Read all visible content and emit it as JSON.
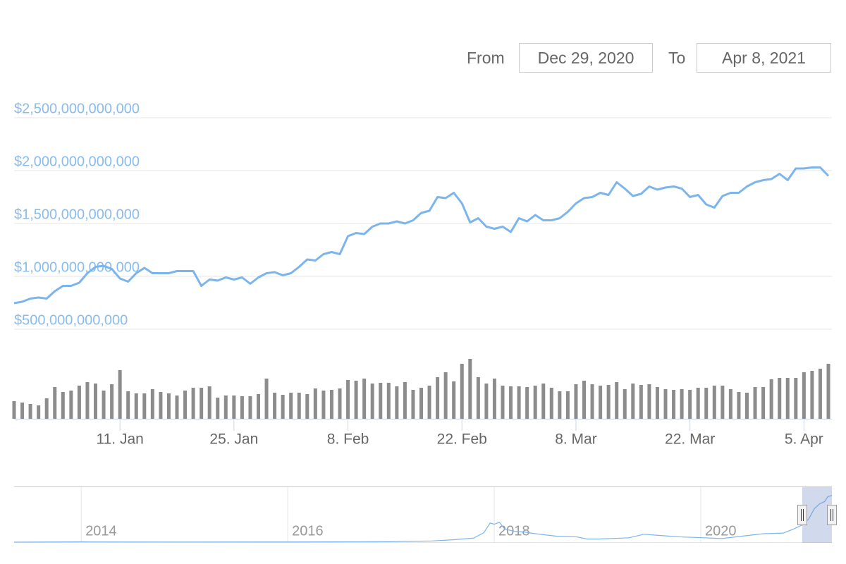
{
  "range_selector": {
    "from_label": "From",
    "from": "Dec 29, 2020",
    "to_label": "To",
    "to": "Apr 8, 2021"
  },
  "chart_data": [
    {
      "type": "line",
      "categories": [
        null,
        null,
        null,
        null,
        null,
        null,
        null,
        null,
        null,
        null,
        null,
        null,
        null,
        "11. Jan",
        null,
        null,
        null,
        null,
        null,
        null,
        null,
        null,
        null,
        null,
        null,
        null,
        null,
        "25. Jan",
        null,
        null,
        null,
        null,
        null,
        null,
        null,
        null,
        null,
        null,
        null,
        null,
        null,
        "8. Feb",
        null,
        null,
        null,
        null,
        null,
        null,
        null,
        null,
        null,
        null,
        null,
        null,
        null,
        "22. Feb",
        null,
        null,
        null,
        null,
        null,
        null,
        null,
        null,
        null,
        null,
        null,
        null,
        null,
        "8. Mar",
        null,
        null,
        null,
        null,
        null,
        null,
        null,
        null,
        null,
        null,
        null,
        null,
        null,
        "22. Mar",
        null,
        null,
        null,
        null,
        null,
        null,
        null,
        null,
        null,
        null,
        null,
        null,
        null,
        "5. Apr",
        null,
        null,
        null
      ],
      "series": [
        {
          "type": "line",
          "color": "#7cb5ec",
          "values": [
            747000000000.0,
            760000000000.0,
            790000000000.0,
            800000000000.0,
            790000000000.0,
            860000000000.0,
            910000000000.0,
            910000000000.0,
            940000000000.0,
            1030000000000.0,
            1090000000000.0,
            1100000000000.0,
            1070000000000.0,
            980000000000.0,
            950000000000.0,
            1030000000000.0,
            1080000000000.0,
            1030000000000.0,
            1030000000000.0,
            1030000000000.0,
            1050000000000.0,
            1050000000000.0,
            1050000000000.0,
            910000000000.0,
            970000000000.0,
            960000000000.0,
            990000000000.0,
            970000000000.0,
            990000000000.0,
            930000000000.0,
            990000000000.0,
            1030000000000.0,
            1040000000000.0,
            1010000000000.0,
            1030000000000.0,
            1090000000000.0,
            1160000000000.0,
            1150000000000.0,
            1210000000000.0,
            1230000000000.0,
            1210000000000.0,
            1380000000000.0,
            1410000000000.0,
            1400000000000.0,
            1470000000000.0,
            1500000000000.0,
            1500000000000.0,
            1520000000000.0,
            1500000000000.0,
            1530000000000.0,
            1600000000000.0,
            1620000000000.0,
            1750000000000.0,
            1740000000000.0,
            1790000000000.0,
            1690000000000.0,
            1510000000000.0,
            1550000000000.0,
            1470000000000.0,
            1450000000000.0,
            1470000000000.0,
            1420000000000.0,
            1550000000000.0,
            1520000000000.0,
            1580000000000.0,
            1530000000000.0,
            1530000000000.0,
            1550000000000.0,
            1610000000000.0,
            1690000000000.0,
            1740000000000.0,
            1750000000000.0,
            1790000000000.0,
            1770000000000.0,
            1890000000000.0,
            1830000000000.0,
            1760000000000.0,
            1780000000000.0,
            1850000000000.0,
            1820000000000.0,
            1840000000000.0,
            1850000000000.0,
            1830000000000.0,
            1750000000000.0,
            1770000000000.0,
            1680000000000.0,
            1650000000000.0,
            1760000000000.0,
            1790000000000.0,
            1790000000000.0,
            1850000000000.0,
            1890000000000.0,
            1910000000000.0,
            1920000000000.0,
            1970000000000.0,
            1910000000000.0,
            2020000000000.0,
            2020000000000.0,
            2030000000000.0,
            2030000000000.0,
            1950000000000.0
          ]
        },
        {
          "type": "bar",
          "axis": "y2",
          "color": "#8c8c8c",
          "values": [
            62.5,
            57.5,
            52.5,
            47.5,
            72.5,
            112.5,
            95,
            100,
            117.5,
            130,
            125,
            100,
            122.5,
            172.5,
            97.5,
            90,
            90,
            105,
            95,
            90,
            82.5,
            100,
            110,
            110,
            115,
            75,
            82.5,
            82.5,
            80,
            80,
            87.5,
            142.5,
            92.5,
            85,
            92.5,
            92.5,
            87.5,
            107.5,
            100,
            102.5,
            107.5,
            137.5,
            135,
            142.5,
            125,
            127.5,
            127.5,
            115,
            130,
            102.5,
            110,
            117.5,
            147.5,
            165,
            132.5,
            195,
            212.5,
            147.5,
            125,
            142.5,
            117.5,
            115,
            115,
            112.5,
            117.5,
            125,
            110,
            97.5,
            97.5,
            122.5,
            135,
            122.5,
            117.5,
            120,
            130,
            105,
            125,
            120,
            122.5,
            112.5,
            105,
            102.5,
            105,
            102.5,
            110,
            110,
            117.5,
            117.5,
            105,
            95,
            92.5,
            112.5,
            112.5,
            140,
            145,
            145,
            145,
            165,
            170,
            177.5,
            195
          ]
        }
      ],
      "ylim": [
        500000000000.0,
        2500000000000.0
      ],
      "yticks": [
        {
          "value": 500000000000.0,
          "label": "$500,000,000,000"
        },
        {
          "value": 1000000000000.0,
          "label": "$1,000,000,000,000"
        },
        {
          "value": 1500000000000.0,
          "label": "$1,500,000,000,000"
        },
        {
          "value": 2000000000000.0,
          "label": "$2,000,000,000,000"
        },
        {
          "value": 2500000000000.0,
          "label": "$2,500,000,000,000"
        }
      ],
      "y2lim": [
        0,
        300
      ],
      "grid": true
    },
    {
      "type": "line",
      "color": "#7cb5ec",
      "x": [
        2013.35,
        2014.0,
        2015.0,
        2016.0,
        2016.5,
        2017.0,
        2017.4,
        2017.6,
        2017.8,
        2017.9,
        2017.96,
        2018.0,
        2018.05,
        2018.1,
        2018.2,
        2018.3,
        2018.4,
        2018.6,
        2018.8,
        2018.9,
        2019.0,
        2019.3,
        2019.45,
        2019.6,
        2019.8,
        2020.0,
        2020.2,
        2020.4,
        2020.6,
        2020.8,
        2020.9,
        2021.0,
        2021.05,
        2021.1,
        2021.15,
        2021.2,
        2021.23,
        2021.27
      ],
      "values": [
        2000000000.0,
        10000000000.0,
        5000000000.0,
        7000000000.0,
        10000000000.0,
        18000000000.0,
        50000000000.0,
        100000000000.0,
        170000000000.0,
        400000000000.0,
        800000000000.0,
        750000000000.0,
        830000000000.0,
        550000000000.0,
        450000000000.0,
        420000000000.0,
        350000000000.0,
        250000000000.0,
        220000000000.0,
        130000000000.0,
        130000000000.0,
        180000000000.0,
        330000000000.0,
        280000000000.0,
        220000000000.0,
        190000000000.0,
        150000000000.0,
        250000000000.0,
        350000000000.0,
        380000000000.0,
        550000000000.0,
        750000000000.0,
        1000000000000.0,
        1400000000000.0,
        1600000000000.0,
        1700000000000.0,
        1900000000000.0,
        1950000000000.0
      ],
      "xlim": [
        2013.35,
        2021.27
      ],
      "xticks": [
        2014,
        2016,
        2018,
        2020
      ],
      "ylim": [
        0,
        2300000000000.0
      ]
    }
  ]
}
